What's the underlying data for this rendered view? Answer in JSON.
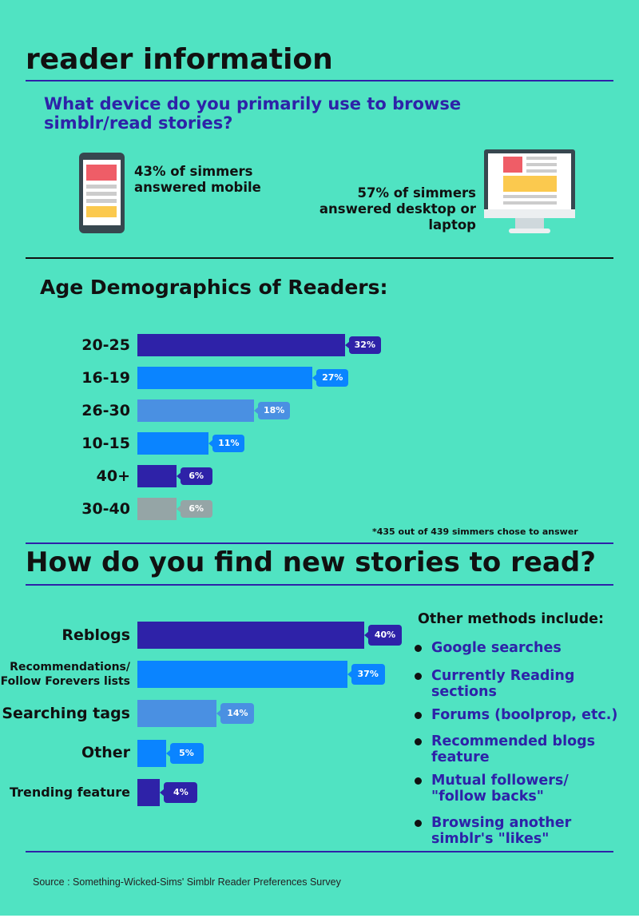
{
  "header": {
    "title": "reader information"
  },
  "device": {
    "question": "What device do you primarily use to browse simblr/read stories?",
    "mobile": "43% of simmers answered mobile",
    "desktop": "57% of simmers answered desktop or laptop"
  },
  "chart_data": [
    {
      "type": "hbar",
      "title": "Age Demographics of Readers:",
      "categories": [
        "20-25",
        "16-19",
        "26-30",
        "10-15",
        "40+",
        "30-40"
      ],
      "values": [
        32,
        27,
        18,
        11,
        6,
        6
      ],
      "value_labels": [
        "32%",
        "27%",
        "18%",
        "11%",
        "6%",
        "6%"
      ],
      "colors": [
        "#2e22a8",
        "#0a84ff",
        "#4a90e2",
        "#0a84ff",
        "#2e22a8",
        "#95a5a6"
      ],
      "note": "*435 out of 439 simmers chose to answer"
    },
    {
      "type": "hbar",
      "title": "How do you find new stories to read?",
      "categories": [
        "Reblogs",
        "Recommendations/\nFollow Forevers lists",
        "Searching tags",
        "Other",
        "Trending feature"
      ],
      "values": [
        40,
        37,
        14,
        5,
        4
      ],
      "value_labels": [
        "40%",
        "37%",
        "14%",
        "5%",
        "4%"
      ],
      "colors": [
        "#2e22a8",
        "#0a84ff",
        "#4a90e2",
        "#0a84ff",
        "#2e22a8"
      ]
    }
  ],
  "other_methods": {
    "title": "Other methods include:",
    "items": [
      "Google searches",
      "Currently Reading sections",
      "Forums (boolprop, etc.)",
      "Recommended blogs feature",
      "Mutual followers/ \"follow backs\"",
      "Browsing another simblr's \"likes\""
    ]
  },
  "source": "Source : Something-Wicked-Sims' Simblr Reader Preferences Survey"
}
